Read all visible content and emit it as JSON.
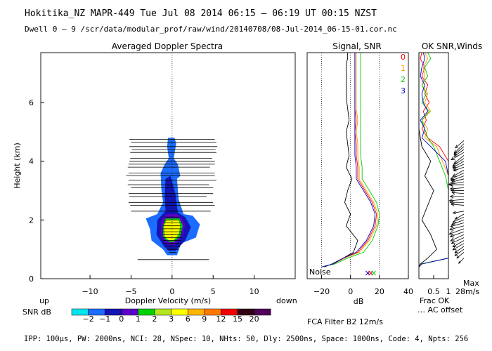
{
  "header": {
    "title": "Hokitika_NZ  MAPR-449  Tue Jul 08 2014 06:15 – 06:19 UT 00:15 NZST",
    "subtitle": "Dwell  0 –  9   /scr/data/modular_prof/raw/wind/20140708/08-Jul-2014_06-15-01.cor.nc"
  },
  "panels": {
    "spectra_title": "Averaged Doppler Spectra",
    "signal_title": "Signal, SNR",
    "ok_title": "OK SNR,Winds"
  },
  "axes": {
    "ylabel": "Height (km)",
    "spectra_xlabel": "Doppler Velocity (m/s)",
    "signal_xlabel": "dB",
    "up_label": "up",
    "down_label": "down",
    "noise_label": "Noise",
    "frac_ok_label": "Frac OK",
    "ac_offset_label": "․․․ AC offset",
    "max_label": "Max",
    "max_value": "28m/s",
    "filter_label": "FCA Filter B2 12m/s"
  },
  "colorbar": {
    "label": "SNR dB",
    "ticks": [
      "−2",
      "−1",
      "0",
      "1",
      "2",
      "3",
      "6",
      "9",
      "12",
      "15",
      "20"
    ],
    "colors": [
      "#00e5ee",
      "#1c6cff",
      "#1414b4",
      "#5a00c8",
      "#00d200",
      "#b4e61e",
      "#ffff00",
      "#ffb400",
      "#ff7800",
      "#f00000",
      "#320014",
      "#50005a"
    ]
  },
  "beams": {
    "labels": [
      "0",
      "1",
      "2",
      "3"
    ],
    "colors": [
      "#ff0000",
      "#ff9900",
      "#00cc00",
      "#0000cc"
    ]
  },
  "footer": {
    "params": "IPP: 100μs,  PW: 2000ns,  NCI:  28,  NSpec: 10, NHts: 50,  Dly: 2500ns,  Space: 1000ns,  Code: 4,  Npts: 256"
  },
  "chart_data": [
    {
      "type": "heatmap",
      "title": "Averaged Doppler Spectra",
      "xlabel": "Doppler Velocity (m/s)",
      "ylabel": "Height (km)",
      "xlim": [
        -16,
        15
      ],
      "ylim": [
        0,
        7.7
      ],
      "xticks": [
        -10,
        -5,
        0,
        5,
        10
      ],
      "yticks": [
        0,
        2,
        4,
        6
      ],
      "snr_contours": [
        {
          "snr_db": -2,
          "outline": [
            [
              0.6,
              0.8
            ],
            [
              1.1,
              1.2
            ],
            [
              2.9,
              1.4
            ],
            [
              3.4,
              1.85
            ],
            [
              2.5,
              2.15
            ],
            [
              1.4,
              2.2
            ],
            [
              0.8,
              2.7
            ],
            [
              0.6,
              3.4
            ],
            [
              1.0,
              3.5
            ],
            [
              0.7,
              3.9
            ],
            [
              0.2,
              4.1
            ],
            [
              0.5,
              4.6
            ],
            [
              0.3,
              4.8
            ],
            [
              -0.5,
              4.8
            ],
            [
              -0.6,
              4.5
            ],
            [
              -0.4,
              4.1
            ],
            [
              -0.9,
              3.9
            ],
            [
              -1.4,
              3.6
            ],
            [
              -1.3,
              3.0
            ],
            [
              -1.1,
              2.6
            ],
            [
              -1.8,
              2.2
            ],
            [
              -3.2,
              2.05
            ],
            [
              -2.7,
              1.7
            ],
            [
              -2.5,
              1.3
            ],
            [
              -1.1,
              1.0
            ],
            [
              -0.6,
              0.8
            ]
          ]
        },
        {
          "snr_db": -1,
          "outline": [
            [
              0.4,
              0.95
            ],
            [
              1.6,
              1.3
            ],
            [
              2.3,
              1.75
            ],
            [
              1.6,
              2.1
            ],
            [
              0.7,
              2.25
            ],
            [
              0.4,
              2.9
            ],
            [
              -0.2,
              3.5
            ],
            [
              -0.8,
              3.4
            ],
            [
              -0.9,
              2.8
            ],
            [
              -0.8,
              2.3
            ],
            [
              -1.8,
              2.0
            ],
            [
              -1.9,
              1.5
            ],
            [
              -1.0,
              1.1
            ],
            [
              -0.4,
              0.95
            ]
          ]
        },
        {
          "snr_db": 0,
          "outline": [
            [
              0.3,
              1.15
            ],
            [
              1.3,
              1.45
            ],
            [
              1.6,
              1.85
            ],
            [
              1.2,
              2.05
            ],
            [
              0.6,
              2.2
            ],
            [
              -0.7,
              2.2
            ],
            [
              -1.3,
              2.0
            ],
            [
              -1.4,
              1.5
            ],
            [
              -0.8,
              1.2
            ],
            [
              -0.3,
              1.15
            ]
          ]
        },
        {
          "snr_db": 1,
          "outline": [
            [
              0.2,
              1.25
            ],
            [
              1.0,
              1.45
            ],
            [
              1.3,
              1.8
            ],
            [
              0.9,
              2.05
            ],
            [
              -0.8,
              2.05
            ],
            [
              -1.1,
              1.8
            ],
            [
              -1.1,
              1.45
            ],
            [
              -0.7,
              1.3
            ],
            [
              -0.2,
              1.25
            ]
          ]
        },
        {
          "snr_db": 3,
          "outline": [
            [
              0.1,
              1.3
            ],
            [
              0.8,
              1.5
            ],
            [
              1.0,
              1.8
            ],
            [
              0.8,
              2.0
            ],
            [
              -0.7,
              2.0
            ],
            [
              -1.0,
              1.8
            ],
            [
              -0.9,
              1.45
            ],
            [
              -0.5,
              1.33
            ],
            [
              -0.1,
              1.3
            ]
          ]
        }
      ],
      "noise_lines_km": [
        0.65,
        0.9,
        1.0,
        1.1,
        1.2,
        1.3,
        1.4,
        1.5,
        1.6,
        1.7,
        1.8,
        1.9,
        2.0,
        2.1,
        2.3,
        2.5,
        2.6,
        2.8,
        2.9,
        3.1,
        3.2,
        3.35,
        3.5,
        3.6,
        3.8,
        3.9,
        4.0,
        4.1,
        4.3,
        4.4,
        4.5,
        4.65,
        4.75
      ],
      "noise_line_right_m_s": [
        4.5,
        0.5,
        0.8,
        1.0,
        1.1,
        1.1,
        1.2,
        1.2,
        1.2,
        1.2,
        1.1,
        1.0,
        0.9,
        0.9,
        4.7,
        5.2,
        5.0,
        4.2,
        5.0,
        5.0,
        4.5,
        5.4,
        5.2,
        5.2,
        4.6,
        5.2,
        5.2,
        4.9,
        5.4,
        5.3,
        5.5,
        5.4,
        5.2
      ],
      "noise_line_left_m_s": [
        -4.2,
        -0.4,
        -0.6,
        -0.9,
        -1.0,
        -1.1,
        -1.1,
        -1.2,
        -1.2,
        -1.2,
        -1.1,
        -1.0,
        -0.9,
        -0.9,
        -5.0,
        -5.1,
        -5.3,
        -5.2,
        -5.3,
        -5.0,
        -5.4,
        -5.3,
        -5.6,
        -5.3,
        -5.4,
        -5.3,
        -5.2,
        -5.1,
        -5.1,
        -4.9,
        -5.2,
        -5.0,
        -5.2
      ]
    },
    {
      "type": "line",
      "title": "Signal, SNR",
      "xlabel": "dB",
      "xlim": [
        -30,
        40
      ],
      "xticks": [
        -20,
        0,
        20,
        40
      ],
      "ylim": [
        0,
        7.7
      ],
      "dotted_reference_x": [
        -20,
        0,
        20
      ],
      "series": [
        {
          "name": "noise",
          "x": [
            -18,
            -13,
            -5,
            2,
            5,
            -3,
            0,
            -4,
            -2,
            1,
            -3,
            -1,
            -2,
            -3,
            -1,
            -2,
            -3,
            -3,
            -3,
            -3,
            -2,
            -2
          ],
          "y": [
            0.4,
            0.5,
            0.7,
            0.9,
            1.3,
            1.8,
            2.2,
            2.6,
            3.0,
            3.4,
            3.8,
            4.2,
            4.6,
            5.0,
            5.4,
            5.8,
            6.2,
            6.6,
            7.0,
            7.3,
            7.5,
            7.7
          ]
        },
        {
          "name": "beam 0",
          "x": [
            -20,
            -12,
            -5,
            5,
            12,
            17,
            18,
            15,
            10,
            5,
            5,
            4,
            4,
            3,
            4,
            3,
            3,
            3,
            3,
            3,
            3,
            3
          ],
          "y": [
            0.4,
            0.5,
            0.7,
            0.9,
            1.3,
            1.8,
            2.2,
            2.6,
            3.0,
            3.4,
            3.8,
            4.2,
            4.6,
            5.0,
            5.4,
            5.8,
            6.2,
            6.6,
            7.0,
            7.3,
            7.5,
            7.7
          ]
        },
        {
          "name": "beam 1",
          "x": [
            -20,
            -12,
            -4,
            6,
            13,
            18,
            19,
            16,
            11,
            6,
            6,
            5,
            5,
            4,
            5,
            4,
            4,
            4,
            4,
            4,
            4,
            4
          ],
          "y": [
            0.4,
            0.5,
            0.7,
            0.9,
            1.3,
            1.8,
            2.2,
            2.6,
            3.0,
            3.4,
            3.8,
            4.2,
            4.6,
            5.0,
            5.4,
            5.8,
            6.2,
            6.6,
            7.0,
            7.3,
            7.5,
            7.7
          ]
        },
        {
          "name": "beam 2",
          "x": [
            -20,
            -11,
            -2,
            9,
            15,
            19,
            20,
            18,
            13,
            8,
            8,
            7,
            7,
            7,
            7,
            7,
            7,
            7,
            7,
            7,
            7,
            7
          ],
          "y": [
            0.4,
            0.5,
            0.7,
            0.9,
            1.3,
            1.8,
            2.2,
            2.6,
            3.0,
            3.4,
            3.8,
            4.2,
            4.6,
            5.0,
            5.4,
            5.8,
            6.2,
            6.6,
            7.0,
            7.3,
            7.5,
            7.7
          ]
        },
        {
          "name": "beam 3",
          "x": [
            -20,
            -12,
            -5,
            4,
            11,
            16,
            17,
            14,
            9,
            4,
            4,
            3,
            3,
            3,
            3,
            3,
            3,
            3,
            3,
            3,
            3,
            3
          ],
          "y": [
            0.4,
            0.5,
            0.7,
            0.9,
            1.3,
            1.8,
            2.2,
            2.6,
            3.0,
            3.4,
            3.8,
            4.2,
            4.6,
            5.0,
            5.4,
            5.8,
            6.2,
            6.6,
            7.0,
            7.3,
            7.5,
            7.7
          ]
        }
      ],
      "noise_markers_db": [
        12,
        14,
        16
      ]
    },
    {
      "type": "line",
      "title": "OK SNR,Winds",
      "xlabel": "Frac OK",
      "xlim": [
        0,
        1
      ],
      "xticks": [
        0.5,
        1
      ],
      "xtick_labels": [
        "0.5",
        "1"
      ],
      "ylim": [
        0,
        7.7
      ],
      "series": [
        {
          "name": "beam 0",
          "x": [
            0,
            0.05,
            1,
            1,
            1,
            1,
            1,
            1,
            1,
            1,
            0.7,
            0.3,
            0.1,
            0.25,
            0.15,
            0.35,
            0.2,
            0.3,
            0.1,
            0.2,
            0.05,
            0.1
          ],
          "y": [
            0.4,
            0.5,
            0.7,
            1.0,
            1.5,
            2.0,
            2.5,
            3.0,
            3.5,
            4.0,
            4.5,
            4.8,
            5.1,
            5.4,
            5.7,
            6.0,
            6.3,
            6.6,
            6.9,
            7.2,
            7.5,
            7.7
          ]
        },
        {
          "name": "beam 1",
          "x": [
            0,
            0.1,
            1,
            1,
            1,
            1,
            1,
            1,
            1,
            0.8,
            0.6,
            0.2,
            0.3,
            0.1,
            0.4,
            0.2,
            0.3,
            0.1,
            0.2,
            0.15,
            0.3,
            0.2
          ],
          "y": [
            0.4,
            0.5,
            0.7,
            1.0,
            1.5,
            2.0,
            2.5,
            3.0,
            3.5,
            4.0,
            4.5,
            4.8,
            5.1,
            5.4,
            5.7,
            6.0,
            6.3,
            6.6,
            6.9,
            7.2,
            7.5,
            7.7
          ]
        },
        {
          "name": "beam 2",
          "x": [
            0,
            0.05,
            1,
            1,
            1,
            1,
            1,
            1,
            0.9,
            0.7,
            0.5,
            0.3,
            0.2,
            0.1,
            0.35,
            0.1,
            0.25,
            0.1,
            0.3,
            0.2,
            0.4,
            0.3
          ],
          "y": [
            0.4,
            0.5,
            0.7,
            1.0,
            1.5,
            2.0,
            2.5,
            3.0,
            3.5,
            4.0,
            4.5,
            4.8,
            5.1,
            5.4,
            5.7,
            6.0,
            6.3,
            6.6,
            6.9,
            7.2,
            7.5,
            7.7
          ]
        },
        {
          "name": "beam 3",
          "x": [
            0,
            0.1,
            1,
            1,
            1,
            1,
            1,
            1,
            1,
            0.9,
            0.4,
            0.1,
            0.2,
            0.05,
            0.3,
            0.15,
            0.1,
            0.2,
            0.05,
            0.1,
            0.2,
            0.15
          ],
          "y": [
            0.4,
            0.5,
            0.7,
            1.0,
            1.5,
            2.0,
            2.5,
            3.0,
            3.5,
            4.0,
            4.5,
            4.8,
            5.1,
            5.4,
            5.7,
            6.0,
            6.3,
            6.6,
            6.9,
            7.2,
            7.5,
            7.7
          ]
        },
        {
          "name": "AC offset",
          "x": [
            0,
            0.05,
            0.3,
            0.6,
            0.4,
            0.1,
            0.3,
            0.5,
            0.2,
            0.4,
            0.1,
            0.05,
            0,
            0,
            0,
            0,
            0,
            0,
            0,
            0,
            0,
            0
          ],
          "y": [
            0.4,
            0.5,
            0.7,
            1.0,
            1.5,
            2.0,
            2.5,
            3.0,
            3.5,
            4.0,
            4.5,
            4.8,
            5.1,
            5.4,
            5.7,
            6.0,
            6.3,
            6.6,
            6.9,
            7.2,
            7.5,
            7.7
          ]
        }
      ],
      "winds": {
        "max_speed_m_s": 28,
        "heights_km": [
          0.7,
          0.9,
          1.0,
          1.1,
          1.2,
          1.3,
          1.4,
          1.5,
          1.6,
          1.7,
          1.8,
          1.9,
          2.0,
          2.1,
          2.2,
          2.3,
          2.5,
          2.6,
          2.7,
          2.8,
          2.9,
          3.0,
          3.1,
          3.2,
          3.3,
          3.4,
          3.5,
          3.6,
          3.7,
          3.8,
          3.9,
          4.0,
          4.1,
          4.2,
          4.3,
          4.4,
          4.5,
          4.6,
          4.7
        ],
        "speed_frac": [
          0.4,
          0.5,
          0.6,
          0.6,
          0.7,
          0.7,
          0.75,
          0.8,
          0.8,
          0.85,
          0.8,
          0.75,
          0.7,
          0.65,
          0.55,
          0.6,
          0.7,
          0.75,
          0.8,
          0.75,
          0.65,
          0.7,
          0.75,
          0.8,
          0.85,
          0.7,
          0.75,
          0.8,
          0.7,
          0.6,
          0.65,
          0.7,
          0.75,
          0.7,
          0.8,
          0.65,
          0.7,
          0.75,
          0.6
        ],
        "direction_deg": [
          225,
          230,
          235,
          235,
          240,
          240,
          245,
          245,
          250,
          250,
          255,
          255,
          250,
          245,
          240,
          260,
          275,
          270,
          265,
          270,
          275,
          270,
          265,
          270,
          260,
          255,
          250,
          245,
          240,
          250,
          245,
          240,
          235,
          230,
          240,
          235,
          230,
          225,
          230
        ]
      }
    }
  ]
}
